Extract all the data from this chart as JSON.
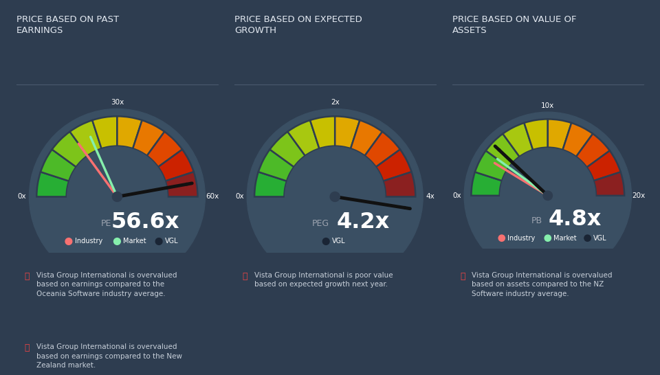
{
  "bg_color": "#2e3d50",
  "text_color": "#ffffff",
  "title_color": "#e2e8f0",
  "label_color": "#9ca3af",
  "titles": [
    "PRICE BASED ON PAST\nEARNINGS",
    "PRICE BASED ON EXPECTED\nGROWTH",
    "PRICE BASED ON VALUE OF\nASSETS"
  ],
  "gauges": [
    {
      "min_val": 0,
      "max_val": 60,
      "mid_label": "30x",
      "min_label": "0x",
      "max_label": "60x",
      "value": 56.6,
      "value_label": "56.6",
      "prefix": "PE",
      "industry_val": 18.0,
      "market_val": 22.0,
      "has_industry": true,
      "has_market": true,
      "legend": [
        "Industry",
        "Market",
        "VGL"
      ],
      "legend_colors": [
        "#f87171",
        "#86efac",
        "#1a2535"
      ]
    },
    {
      "min_val": 0,
      "max_val": 4,
      "mid_label": "2x",
      "min_label": "0x",
      "max_label": "4x",
      "value": 4.2,
      "value_label": "4.2",
      "prefix": "PEG",
      "industry_val": null,
      "market_val": null,
      "has_industry": false,
      "has_market": false,
      "legend": [
        "VGL"
      ],
      "legend_colors": [
        "#1a2535"
      ]
    },
    {
      "min_val": 0,
      "max_val": 20,
      "mid_label": "10x",
      "min_label": "0x",
      "max_label": "20x",
      "value": 4.8,
      "value_label": "4.8",
      "prefix": "PB",
      "industry_val": 3.5,
      "market_val": 4.0,
      "has_industry": true,
      "has_market": true,
      "legend": [
        "Industry",
        "Market",
        "VGL"
      ],
      "legend_colors": [
        "#f87171",
        "#86efac",
        "#1a2535"
      ]
    }
  ],
  "bullet_texts": [
    [
      "Vista Group International is overvalued\nbased on earnings compared to the\nOceania Software industry average.",
      "Vista Group International is overvalued\nbased on earnings compared to the New\nZealand market."
    ],
    [
      "Vista Group International is poor value\nbased on expected growth next year."
    ],
    [
      "Vista Group International is overvalued\nbased on assets compared to the NZ\nSoftware industry average."
    ]
  ],
  "gauge_colors": [
    "#27ae34",
    "#4dba28",
    "#7dc41a",
    "#a8c810",
    "#c8c000",
    "#e0a800",
    "#e87800",
    "#e04800",
    "#cc2200",
    "#8b2020"
  ],
  "circle_bg": "#3a4f63",
  "separator_color": "#4b5a6e"
}
